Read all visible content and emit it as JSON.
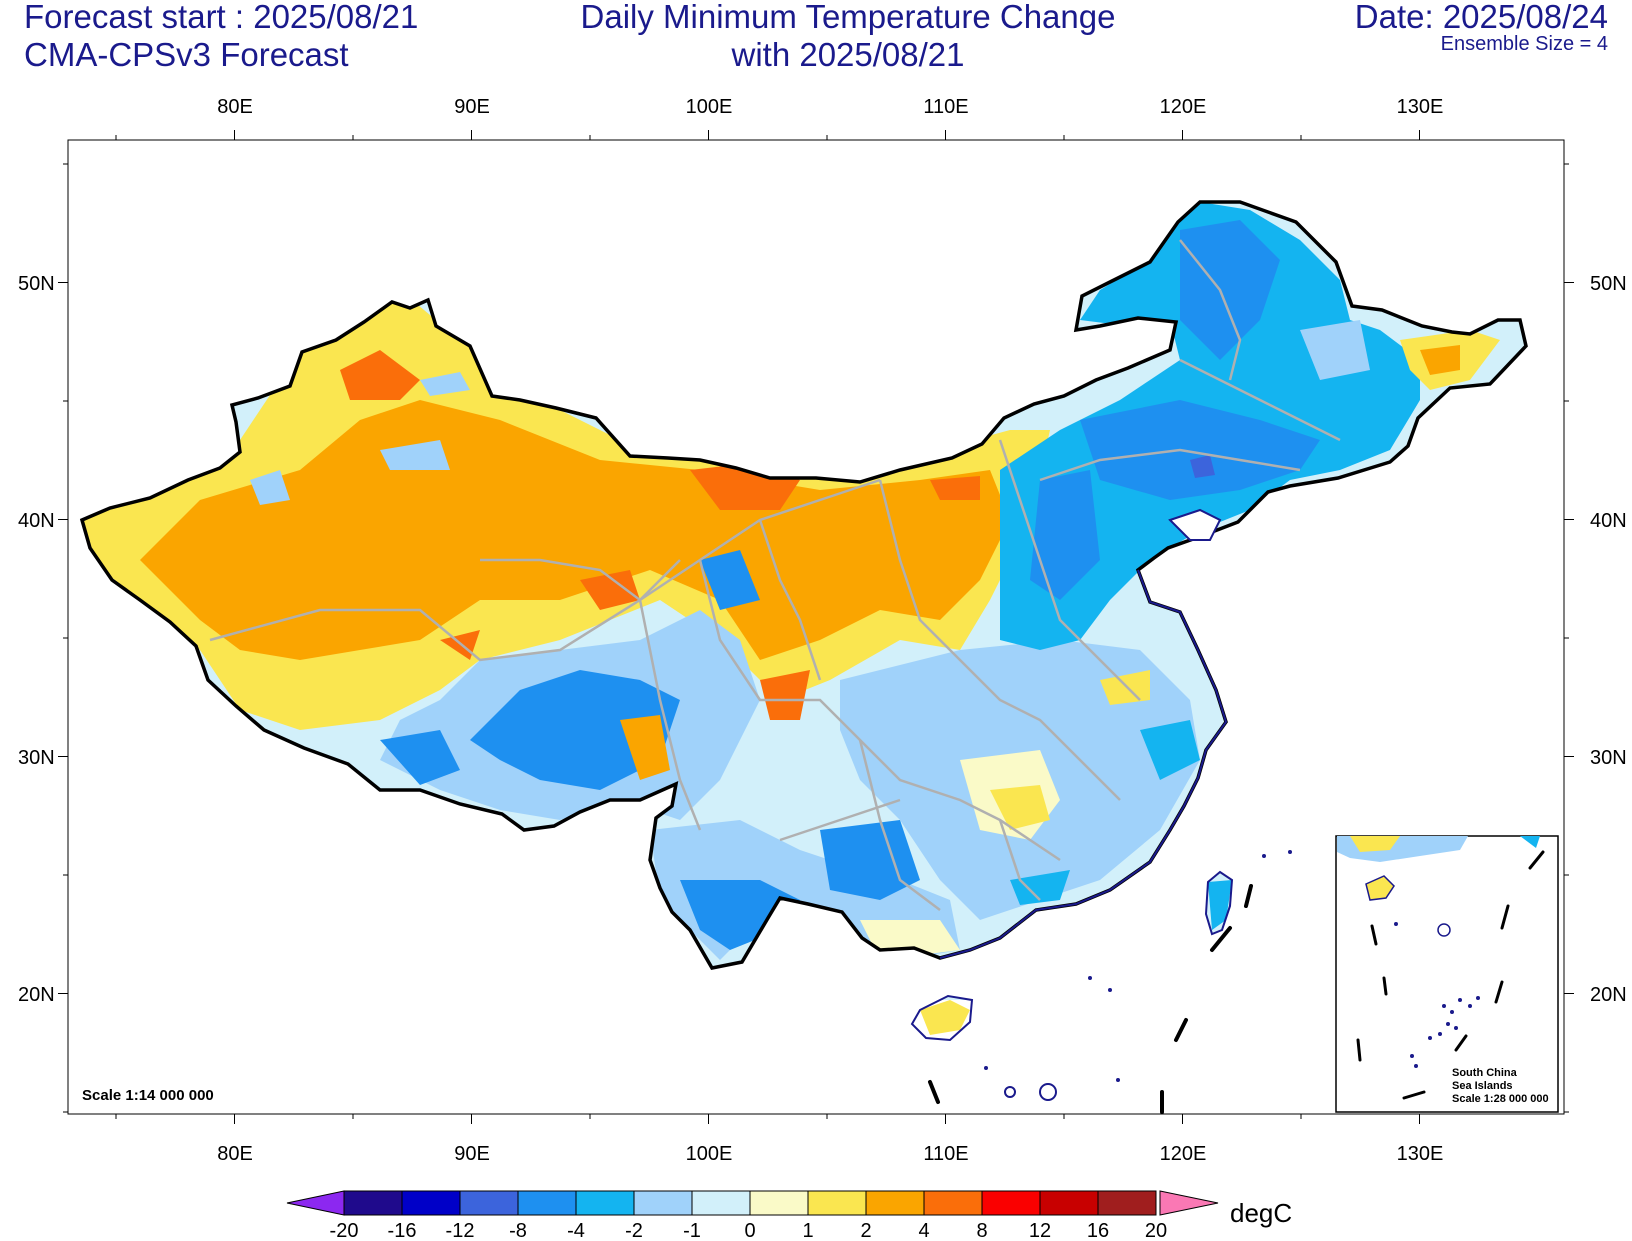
{
  "header": {
    "left_line1": "Forecast start : 2025/08/21",
    "left_line2": "CMA-CPSv3 Forecast",
    "center_line1": "Daily Minimum Temperature Change",
    "center_line2": "with 2025/08/21",
    "right_line1": "Date: 2025/08/24",
    "ensemble": "Ensemble Size = 4"
  },
  "map": {
    "lon_ticks": [
      "80E",
      "90E",
      "100E",
      "110E",
      "120E",
      "130E"
    ],
    "lat_ticks": [
      "50N",
      "40N",
      "30N",
      "20N"
    ],
    "scale_label": "Scale 1:14 000 000",
    "inset": {
      "line1": "South China",
      "line2": "Sea Islands",
      "line3": "Scale 1:28 000 000"
    }
  },
  "colorbar": {
    "unit": "degC",
    "labels": [
      "-20",
      "-16",
      "-12",
      "-8",
      "-4",
      "-2",
      "-1",
      "0",
      "1",
      "2",
      "4",
      "8",
      "12",
      "16",
      "20"
    ],
    "colors": [
      "#1f0a8c",
      "#0000c8",
      "#3c64dc",
      "#1e90f0",
      "#14b4f0",
      "#a0d2fa",
      "#d2f0fa",
      "#fafac8",
      "#fae650",
      "#faa500",
      "#fa6e0a",
      "#fa0000",
      "#c80000",
      "#a01e1e"
    ],
    "low_arrow_color": "#8c28f0",
    "high_arrow_color": "#fa78b4"
  }
}
